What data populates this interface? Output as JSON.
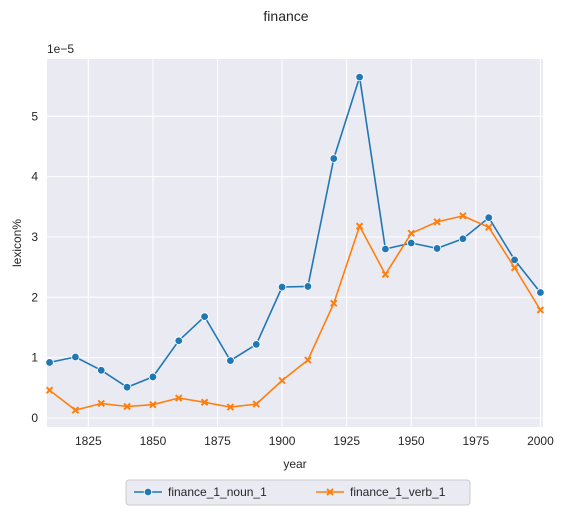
{
  "chart_data": {
    "type": "line",
    "title": "finance",
    "xlabel": "year",
    "ylabel": "lexicon%",
    "y_offset_label": "1e−5",
    "xlim": [
      1809,
      2001
    ],
    "ylim": [
      -0.15,
      5.95
    ],
    "x_ticks": [
      1825,
      1850,
      1875,
      1900,
      1925,
      1950,
      1975,
      2000
    ],
    "y_ticks": [
      0,
      1,
      2,
      3,
      4,
      5
    ],
    "grid": true,
    "legend_position": "bottom-center",
    "x": [
      1810,
      1820,
      1830,
      1840,
      1850,
      1860,
      1870,
      1880,
      1890,
      1900,
      1910,
      1920,
      1930,
      1940,
      1950,
      1960,
      1970,
      1980,
      1990,
      2000
    ],
    "series": [
      {
        "name": "finance_1_noun_1",
        "color": "#1f77b4",
        "marker": "circle",
        "values": [
          0.92,
          1.01,
          0.79,
          0.51,
          0.68,
          1.28,
          1.68,
          0.95,
          1.22,
          2.17,
          2.18,
          4.3,
          5.65,
          2.8,
          2.9,
          2.81,
          2.97,
          3.32,
          2.62,
          2.08
        ]
      },
      {
        "name": "finance_1_verb_1",
        "color": "#ff7f0e",
        "marker": "x",
        "values": [
          0.46,
          0.13,
          0.24,
          0.19,
          0.22,
          0.33,
          0.26,
          0.18,
          0.23,
          0.62,
          0.96,
          1.9,
          3.18,
          2.38,
          3.06,
          3.25,
          3.35,
          3.16,
          2.49,
          1.79
        ]
      }
    ]
  }
}
